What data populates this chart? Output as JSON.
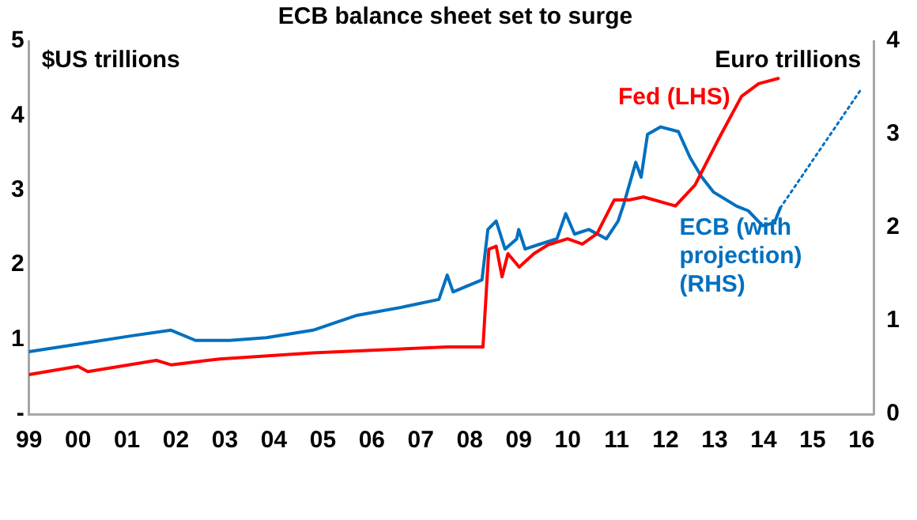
{
  "chart_data": {
    "type": "line",
    "title": "ECB balance sheet set to surge",
    "ylabel": "$US trillions",
    "y2label": "Euro trillions",
    "xlim": [
      1999,
      2016.25
    ],
    "xticks": [
      {
        "value": 1999,
        "label": "99"
      },
      {
        "value": 2000,
        "label": "00"
      },
      {
        "value": 2001,
        "label": "01"
      },
      {
        "value": 2002,
        "label": "02"
      },
      {
        "value": 2003,
        "label": "03"
      },
      {
        "value": 2004,
        "label": "04"
      },
      {
        "value": 2005,
        "label": "05"
      },
      {
        "value": 2006,
        "label": "06"
      },
      {
        "value": 2007,
        "label": "07"
      },
      {
        "value": 2008,
        "label": "08"
      },
      {
        "value": 2009,
        "label": "09"
      },
      {
        "value": 2010,
        "label": "10"
      },
      {
        "value": 2011,
        "label": "11"
      },
      {
        "value": 2012,
        "label": "12"
      },
      {
        "value": 2013,
        "label": "13"
      },
      {
        "value": 2014,
        "label": "14"
      },
      {
        "value": 2015,
        "label": "15"
      },
      {
        "value": 2016,
        "label": "16"
      }
    ],
    "ylim": [
      0,
      5
    ],
    "yticks": [
      {
        "value": 0,
        "label": "-"
      },
      1,
      2,
      3,
      4,
      5
    ],
    "y2lim": [
      0,
      4
    ],
    "y2ticks": [
      0,
      1,
      2,
      3,
      4
    ],
    "grid": false,
    "legend": false,
    "marker": "none",
    "series": [
      {
        "name": "Fed (LHS)",
        "color": "#ff0000",
        "x": [
          1999,
          2000,
          2000.2,
          2001.6,
          2001.9,
          2002.9,
          2004.8,
          2007.54,
          2008.27,
          2008.39,
          2008.54,
          2008.66,
          2008.78,
          2009.01,
          2009.31,
          2009.6,
          2010.0,
          2010.3,
          2010.6,
          2010.95,
          2011.25,
          2011.55,
          2012.2,
          2012.6,
          2013.1,
          2013.55,
          2013.9,
          2014.3
        ],
        "values": [
          0.53,
          0.64,
          0.57,
          0.72,
          0.66,
          0.74,
          0.82,
          0.9,
          0.9,
          2.21,
          2.25,
          1.84,
          2.15,
          1.97,
          2.15,
          2.27,
          2.35,
          2.28,
          2.42,
          2.87,
          2.87,
          2.91,
          2.79,
          3.07,
          3.71,
          4.26,
          4.43,
          4.5
        ]
      },
      {
        "name": "ECB (with projection) (RHS)",
        "color": "#0070c0",
        "axis": "y2",
        "x": [
          1999,
          2000,
          2001.1,
          2001.9,
          2002.4,
          2003.1,
          2003.85,
          2004.8,
          2005.7,
          2006.65,
          2007.37,
          2007.54,
          2007.66,
          2008.25,
          2008.37,
          2008.54,
          2008.72,
          2008.96,
          2009.0,
          2009.13,
          2009.42,
          2009.78,
          2009.96,
          2010.14,
          2010.43,
          2010.79,
          2011.03,
          2011.15,
          2011.39,
          2011.5,
          2011.63,
          2011.9,
          2012.26,
          2012.5,
          2012.74,
          2012.98,
          2013.45,
          2013.69,
          2013.98,
          2014.22,
          2014.34
        ],
        "values": [
          0.67,
          0.75,
          0.84,
          0.9,
          0.79,
          0.79,
          0.82,
          0.9,
          1.06,
          1.15,
          1.23,
          1.49,
          1.31,
          1.44,
          1.98,
          2.07,
          1.77,
          1.88,
          1.98,
          1.77,
          1.82,
          1.88,
          2.15,
          1.93,
          1.98,
          1.88,
          2.07,
          2.26,
          2.7,
          2.54,
          3.0,
          3.08,
          3.03,
          2.75,
          2.54,
          2.38,
          2.23,
          2.18,
          2.02,
          2.05,
          2.21
        ]
      },
      {
        "color": "#0070c0",
        "axis": "y2",
        "line_style": "dotted",
        "x": [
          2014.34,
          2016.0
        ],
        "values": [
          2.21,
          3.49
        ]
      }
    ]
  }
}
